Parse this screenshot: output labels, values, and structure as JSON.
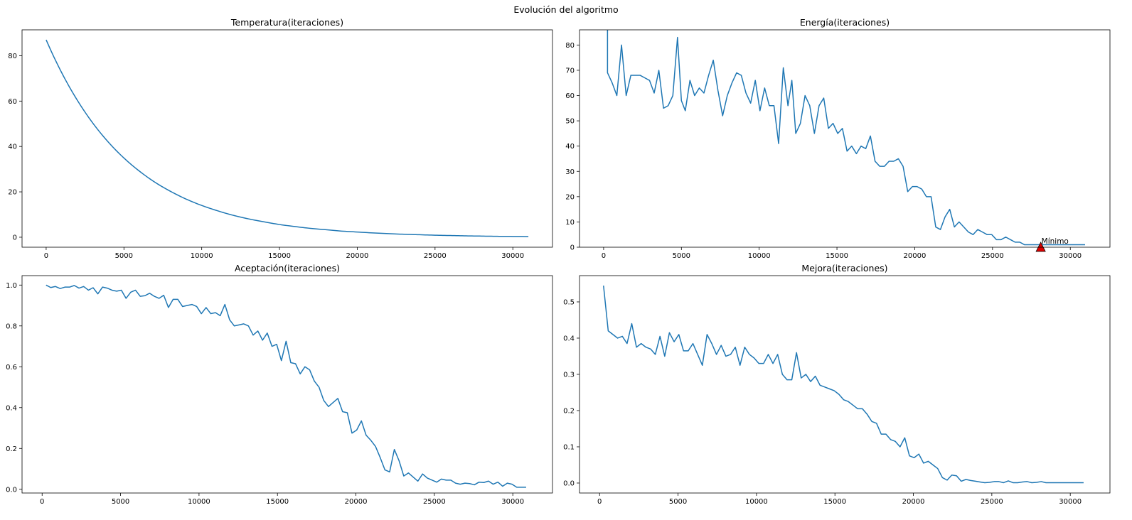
{
  "suptitle": "Evolución del algoritmo",
  "line_color": "#1f77b4",
  "marker_color": "#dd0000",
  "chart_data": [
    {
      "type": "line",
      "title": "Temperatura(iteraciones)",
      "xlim": [
        -1550,
        32550
      ],
      "ylim": [
        -4.4,
        91.4
      ],
      "xticks": [
        0,
        5000,
        10000,
        15000,
        20000,
        25000,
        30000
      ],
      "yticks": [
        0,
        20,
        40,
        60,
        80
      ],
      "series": [
        {
          "kind": "exp",
          "x": [
            0,
            1000,
            2000,
            3000,
            4000,
            5000,
            6000,
            7000,
            8000,
            9000,
            10000,
            11000,
            12000,
            13000,
            14000,
            15000,
            16000,
            17000,
            18000,
            19000,
            20000,
            21000,
            22000,
            23000,
            24000,
            25000,
            26000,
            27000,
            28000,
            29000,
            30000,
            31000
          ],
          "values": [
            87.0,
            72.5,
            60.4,
            50.3,
            41.9,
            34.9,
            29.1,
            24.2,
            20.2,
            16.8,
            14.0,
            11.7,
            9.7,
            8.1,
            6.8,
            5.6,
            4.7,
            3.9,
            3.3,
            2.7,
            2.3,
            1.9,
            1.6,
            1.3,
            1.1,
            0.9,
            0.75,
            0.6,
            0.5,
            0.4,
            0.35,
            0.3
          ]
        }
      ]
    },
    {
      "type": "line",
      "title": "Energía(iteraciones)",
      "xlim": [
        -1550,
        32550
      ],
      "ylim": [
        0,
        86
      ],
      "xticks": [
        0,
        5000,
        10000,
        15000,
        20000,
        25000,
        30000
      ],
      "yticks": [
        0,
        10,
        20,
        30,
        40,
        50,
        60,
        70,
        80
      ],
      "series": [
        {
          "x": [
            250,
            250,
            550,
            850,
            1150,
            1450,
            1750,
            2050,
            2350,
            2650,
            2950,
            3250,
            3550,
            3850,
            4150,
            4450,
            4750,
            5000,
            5250,
            5550,
            5850,
            6150,
            6450,
            6750,
            7050,
            7350,
            7650,
            7950,
            8250,
            8550,
            8850,
            9150,
            9450,
            9750,
            10050,
            10350,
            10650,
            10950,
            11250,
            11550,
            11850,
            12100,
            12350,
            12650,
            12950,
            13250,
            13550,
            13850,
            14150,
            14450,
            14750,
            15050,
            15350,
            15650,
            15950,
            16250,
            16550,
            16850,
            17150,
            17450,
            17750,
            18050,
            18350,
            18650,
            18950,
            19250,
            19550,
            19850,
            20150,
            20450,
            20750,
            21050,
            21350,
            21650,
            21950,
            22250,
            22550,
            22850,
            23150,
            23450,
            23750,
            24050,
            24350,
            24650,
            24950,
            25250,
            25550,
            25850,
            26150,
            26450,
            26750,
            27050,
            27350,
            27650,
            27950,
            28250,
            28550,
            28850,
            29150,
            29450,
            29750,
            30050,
            30350,
            30650,
            30950
          ],
          "values": [
            86,
            69,
            65,
            60,
            80,
            60,
            68,
            68,
            68,
            67,
            66,
            61,
            70,
            55,
            56,
            60,
            83,
            58,
            54,
            66,
            60,
            63,
            61,
            68,
            74,
            62,
            52,
            60,
            65,
            69,
            68,
            61,
            57,
            66,
            54,
            63,
            56,
            56,
            41,
            71,
            56,
            66,
            45,
            49,
            60,
            56,
            45,
            56,
            59,
            47,
            49,
            45,
            47,
            38,
            40,
            37,
            40,
            39,
            44,
            34,
            32,
            32,
            34,
            34,
            35,
            32,
            22,
            24,
            24,
            23,
            20,
            20,
            8,
            7,
            12,
            15,
            8,
            10,
            8,
            6,
            5,
            7,
            6,
            5,
            5,
            3,
            3,
            4,
            3,
            2,
            2,
            1,
            1,
            1,
            1,
            1,
            1,
            1,
            1,
            1,
            1,
            1,
            1,
            1,
            1
          ]
        }
      ],
      "annotation": {
        "text": "Mínimo",
        "x": 28100,
        "y": 0
      }
    },
    {
      "type": "line",
      "title": "Aceptación(iteraciones)",
      "xlim": [
        -1280,
        32530
      ],
      "ylim": [
        -0.0182,
        1.0462
      ],
      "xticks": [
        0,
        5000,
        10000,
        15000,
        20000,
        25000,
        30000
      ],
      "yticks": [
        0.0,
        0.2,
        0.4,
        0.6,
        0.8,
        1.0
      ],
      "series": [
        {
          "x": [
            250,
            550,
            850,
            1150,
            1450,
            1750,
            2050,
            2350,
            2650,
            2950,
            3250,
            3550,
            3850,
            4150,
            4450,
            4750,
            5050,
            5350,
            5650,
            5950,
            6250,
            6550,
            6850,
            7150,
            7450,
            7750,
            8050,
            8350,
            8650,
            8950,
            9250,
            9550,
            9850,
            10150,
            10450,
            10750,
            11050,
            11350,
            11650,
            11950,
            12250,
            12550,
            12850,
            13150,
            13450,
            13750,
            14050,
            14350,
            14650,
            14950,
            15250,
            15550,
            15850,
            16150,
            16450,
            16750,
            17050,
            17350,
            17650,
            17950,
            18250,
            18550,
            18850,
            19150,
            19450,
            19750,
            20050,
            20350,
            20650,
            20950,
            21250,
            21550,
            21850,
            22150,
            22450,
            22750,
            23050,
            23350,
            23650,
            23950,
            24250,
            24550,
            24850,
            25150,
            25450,
            25750,
            26050,
            26350,
            26650,
            26950,
            27250,
            27550,
            27850,
            28150,
            28450,
            28750,
            29050,
            29350,
            29650,
            29950,
            30250,
            30550,
            30850
          ],
          "values": [
            1.0,
            0.988,
            0.993,
            0.983,
            0.99,
            0.99,
            0.998,
            0.985,
            0.993,
            0.975,
            0.987,
            0.957,
            0.99,
            0.985,
            0.975,
            0.97,
            0.975,
            0.935,
            0.965,
            0.975,
            0.945,
            0.948,
            0.96,
            0.945,
            0.935,
            0.95,
            0.89,
            0.93,
            0.93,
            0.895,
            0.9,
            0.905,
            0.895,
            0.86,
            0.89,
            0.86,
            0.865,
            0.85,
            0.905,
            0.83,
            0.8,
            0.805,
            0.81,
            0.8,
            0.755,
            0.775,
            0.73,
            0.765,
            0.7,
            0.71,
            0.63,
            0.725,
            0.62,
            0.615,
            0.565,
            0.6,
            0.585,
            0.53,
            0.5,
            0.435,
            0.405,
            0.425,
            0.445,
            0.38,
            0.375,
            0.275,
            0.29,
            0.335,
            0.265,
            0.24,
            0.21,
            0.155,
            0.095,
            0.085,
            0.195,
            0.14,
            0.065,
            0.08,
            0.06,
            0.04,
            0.075,
            0.055,
            0.045,
            0.035,
            0.05,
            0.045,
            0.045,
            0.03,
            0.025,
            0.03,
            0.028,
            0.022,
            0.035,
            0.033,
            0.04,
            0.025,
            0.035,
            0.015,
            0.03,
            0.025,
            0.01,
            0.01,
            0.01
          ]
        }
      ]
    },
    {
      "type": "line",
      "title": "Mejora(iteraciones)",
      "xlim": [
        -1280,
        32530
      ],
      "ylim": [
        -0.0275,
        0.5725
      ],
      "xticks": [
        0,
        5000,
        10000,
        15000,
        20000,
        25000,
        30000
      ],
      "yticks": [
        0.0,
        0.1,
        0.2,
        0.3,
        0.4,
        0.5
      ],
      "series": [
        {
          "x": [
            250,
            550,
            850,
            1150,
            1450,
            1750,
            2050,
            2350,
            2650,
            2950,
            3250,
            3550,
            3850,
            4150,
            4450,
            4750,
            5050,
            5350,
            5650,
            5950,
            6250,
            6550,
            6850,
            7150,
            7450,
            7750,
            8050,
            8350,
            8650,
            8950,
            9250,
            9550,
            9850,
            10150,
            10450,
            10750,
            11050,
            11350,
            11650,
            11950,
            12250,
            12550,
            12850,
            13150,
            13450,
            13750,
            14050,
            14350,
            14650,
            14950,
            15250,
            15550,
            15850,
            16150,
            16450,
            16750,
            17050,
            17350,
            17650,
            17950,
            18250,
            18550,
            18850,
            19150,
            19450,
            19750,
            20050,
            20350,
            20650,
            20950,
            21250,
            21550,
            21850,
            22150,
            22450,
            22750,
            23050,
            23350,
            23650,
            23950,
            24250,
            24550,
            24850,
            25150,
            25450,
            25750,
            26050,
            26350,
            26650,
            26950,
            27250,
            27550,
            27850,
            28150,
            28450,
            28750,
            29050,
            29350,
            29650,
            29950,
            30250,
            30550,
            30850
          ],
          "values": [
            0.545,
            0.42,
            0.41,
            0.4,
            0.405,
            0.385,
            0.44,
            0.375,
            0.385,
            0.375,
            0.37,
            0.355,
            0.405,
            0.35,
            0.415,
            0.39,
            0.41,
            0.365,
            0.365,
            0.385,
            0.355,
            0.325,
            0.41,
            0.385,
            0.355,
            0.38,
            0.35,
            0.355,
            0.375,
            0.325,
            0.375,
            0.355,
            0.345,
            0.33,
            0.33,
            0.355,
            0.33,
            0.355,
            0.3,
            0.285,
            0.285,
            0.36,
            0.29,
            0.3,
            0.28,
            0.295,
            0.27,
            0.265,
            0.26,
            0.255,
            0.245,
            0.23,
            0.225,
            0.215,
            0.205,
            0.205,
            0.19,
            0.17,
            0.165,
            0.135,
            0.135,
            0.12,
            0.115,
            0.1,
            0.125,
            0.075,
            0.07,
            0.08,
            0.055,
            0.06,
            0.05,
            0.04,
            0.015,
            0.008,
            0.022,
            0.02,
            0.005,
            0.01,
            0.007,
            0.005,
            0.003,
            0.001,
            0.002,
            0.004,
            0.004,
            0.001,
            0.006,
            0.001,
            0.001,
            0.003,
            0.004,
            0.001,
            0.002,
            0.004,
            0.001,
            0.001,
            0.001,
            0.001,
            0.001,
            0.001,
            0.001,
            0.001,
            0.001
          ]
        }
      ]
    }
  ]
}
